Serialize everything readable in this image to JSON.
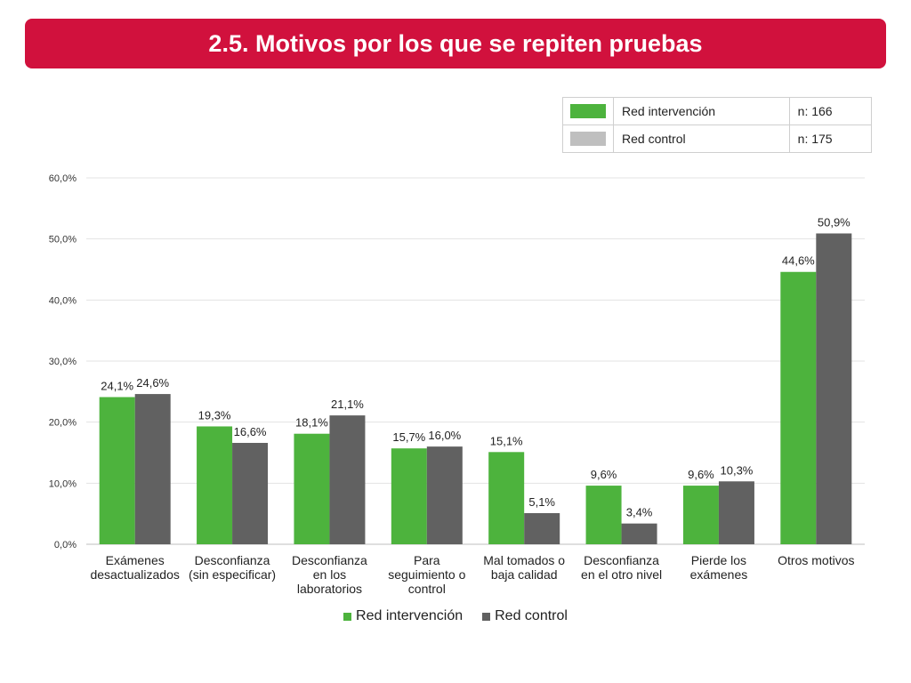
{
  "header": {
    "title": "2.5. Motivos por los que se repiten pruebas"
  },
  "sample_table": {
    "rows": [
      {
        "label": "Red intervención",
        "n": "n: 166",
        "color": "#4db33d"
      },
      {
        "label": "Red control",
        "n": "n: 175",
        "color": "#bfbfbf"
      }
    ]
  },
  "chart_data": {
    "type": "bar",
    "categories": [
      [
        "Exámenes",
        "desactualizados"
      ],
      [
        "Desconfianza",
        "(sin especificar)"
      ],
      [
        "Desconfianza",
        "en los",
        "laboratorios"
      ],
      [
        "Para",
        "seguimiento o",
        "control"
      ],
      [
        "Mal tomados o",
        "baja calidad"
      ],
      [
        "Desconfianza",
        "en el otro nivel"
      ],
      [
        "Pierde los",
        "exámenes"
      ],
      [
        "Otros motivos"
      ]
    ],
    "series": [
      {
        "name": "Red intervención",
        "color": "#4db33d",
        "values": [
          24.1,
          19.3,
          18.1,
          15.7,
          15.1,
          9.6,
          9.6,
          44.6
        ],
        "labels": [
          "24,1%",
          "19,3%",
          "18,1%",
          "15,7%",
          "15,1%",
          "9,6%",
          "9,6%",
          "44,6%"
        ]
      },
      {
        "name": "Red control",
        "color": "#616161",
        "values": [
          24.6,
          16.6,
          21.1,
          16.0,
          5.1,
          3.4,
          10.3,
          50.9
        ],
        "labels": [
          "24,6%",
          "16,6%",
          "21,1%",
          "16,0%",
          "5,1%",
          "3,4%",
          "10,3%",
          "50,9%"
        ]
      }
    ],
    "y_ticks": [
      0,
      10,
      20,
      30,
      40,
      50,
      60
    ],
    "y_tick_labels": [
      "0,0%",
      "10,0%",
      "20,0%",
      "30,0%",
      "40,0%",
      "50,0%",
      "60,0%"
    ],
    "ylim": [
      0,
      60
    ],
    "grid": true,
    "legend_position": "bottom"
  }
}
